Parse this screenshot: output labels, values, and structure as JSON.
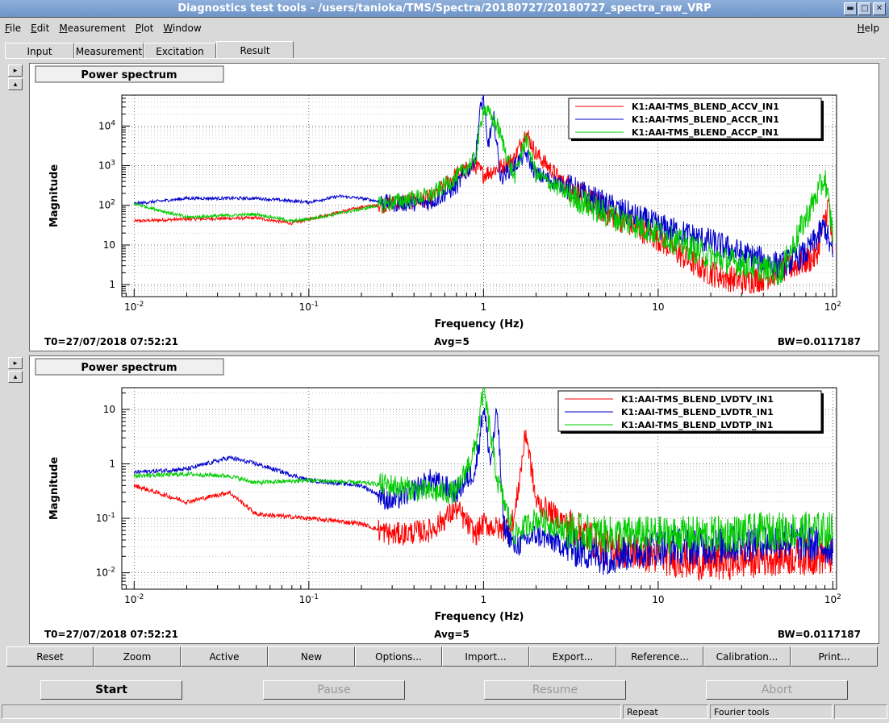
{
  "window": {
    "title": "Diagnostics test tools - /users/tanioka/TMS/Spectra/20180727/20180727_spectra_raw_VRP",
    "minimize": "▬",
    "maximize": "□",
    "close": "✕"
  },
  "menu": {
    "items": [
      {
        "hot": "F",
        "rest": "ile"
      },
      {
        "hot": "E",
        "rest": "dit"
      },
      {
        "hot": "M",
        "rest": "easurement"
      },
      {
        "hot": "P",
        "rest": "lot"
      },
      {
        "hot": "W",
        "rest": "indow"
      }
    ],
    "help": {
      "hot": "H",
      "rest": "elp"
    }
  },
  "tabs": [
    "Input",
    "Measurement",
    "Excitation",
    "Result"
  ],
  "active_tab": "Result",
  "side_buttons": {
    "up": "▸",
    "down": "▴"
  },
  "plots": [
    {
      "header": "Power spectrum",
      "ylabel": "Magnitude",
      "xlabel": "Frequency (Hz)",
      "t0": "T0=27/07/2018 07:52:21",
      "avg": "Avg=5",
      "bw": "BW=0.0117187",
      "xticks": [
        {
          "v": 0.01,
          "label": "10",
          "exp": "-2"
        },
        {
          "v": 0.1,
          "label": "10",
          "exp": "-1"
        },
        {
          "v": 1,
          "label": "1",
          "exp": ""
        },
        {
          "v": 10,
          "label": "10",
          "exp": ""
        },
        {
          "v": 100,
          "label": "10",
          "exp": "2"
        }
      ],
      "yticks": [
        {
          "v": 1,
          "label": "1",
          "exp": ""
        },
        {
          "v": 10,
          "label": "10",
          "exp": ""
        },
        {
          "v": 100,
          "label": "10",
          "exp": "2"
        },
        {
          "v": 1000,
          "label": "10",
          "exp": "3"
        },
        {
          "v": 10000,
          "label": "10",
          "exp": "4"
        }
      ]
    },
    {
      "header": "Power spectrum",
      "ylabel": "Magnitude",
      "xlabel": "Frequency (Hz)",
      "t0": "T0=27/07/2018 07:52:21",
      "avg": "Avg=5",
      "bw": "BW=0.0117187",
      "xticks": [
        {
          "v": 0.01,
          "label": "10",
          "exp": "-2"
        },
        {
          "v": 0.1,
          "label": "10",
          "exp": "-1"
        },
        {
          "v": 1,
          "label": "1",
          "exp": ""
        },
        {
          "v": 10,
          "label": "10",
          "exp": ""
        },
        {
          "v": 100,
          "label": "10",
          "exp": "2"
        }
      ],
      "yticks": [
        {
          "v": 0.01,
          "label": "10",
          "exp": "-2"
        },
        {
          "v": 0.1,
          "label": "10",
          "exp": "-1"
        },
        {
          "v": 1,
          "label": "1",
          "exp": ""
        },
        {
          "v": 10,
          "label": "10",
          "exp": ""
        }
      ]
    }
  ],
  "chart_data": [
    {
      "type": "line",
      "title": "Power spectrum",
      "xlabel": "Frequency (Hz)",
      "ylabel": "Magnitude",
      "xscale": "log",
      "yscale": "log",
      "xlim": [
        0.0085,
        105
      ],
      "ylim": [
        0.5,
        60000
      ],
      "grid": true,
      "legend_position": "top-right",
      "series": [
        {
          "name": "K1:AAI-TMS_BLEND_ACCV_IN1",
          "color": "#ff0000",
          "x": [
            0.01,
            0.02,
            0.05,
            0.08,
            0.1,
            0.2,
            0.3,
            0.5,
            0.7,
            0.9,
            1.0,
            1.3,
            1.5,
            1.75,
            2.0,
            3.0,
            5.0,
            8.0,
            10,
            15,
            20,
            30,
            40,
            60,
            80,
            95,
            100
          ],
          "y": [
            40,
            45,
            48,
            35,
            45,
            90,
            110,
            150,
            600,
            1000,
            600,
            1000,
            1500,
            7000,
            2000,
            300,
            70,
            25,
            15,
            4,
            2,
            1.2,
            1.5,
            3,
            5,
            120,
            4
          ]
        },
        {
          "name": "K1:AAI-TMS_BLEND_ACCR_IN1",
          "color": "#0000cc",
          "x": [
            0.01,
            0.02,
            0.05,
            0.1,
            0.15,
            0.2,
            0.3,
            0.5,
            0.7,
            0.9,
            0.95,
            1.0,
            1.05,
            1.15,
            1.25,
            1.5,
            1.75,
            2.0,
            3.0,
            5.0,
            10,
            20,
            30,
            50,
            70,
            90,
            100
          ],
          "y": [
            110,
            150,
            150,
            120,
            170,
            150,
            110,
            120,
            300,
            1500,
            20000,
            60000,
            3000,
            15000,
            500,
            1000,
            2000,
            600,
            300,
            100,
            30,
            12,
            6,
            3,
            6,
            30,
            5
          ]
        },
        {
          "name": "K1:AAI-TMS_BLEND_ACCP_IN1",
          "color": "#00cc00",
          "x": [
            0.01,
            0.02,
            0.05,
            0.08,
            0.1,
            0.2,
            0.3,
            0.5,
            0.7,
            0.9,
            1.0,
            1.2,
            1.5,
            1.75,
            2.0,
            3.0,
            5.0,
            10,
            20,
            50,
            90,
            100
          ],
          "y": [
            110,
            50,
            60,
            40,
            45,
            80,
            120,
            180,
            500,
            1500,
            30000,
            10000,
            500,
            5000,
            600,
            200,
            60,
            20,
            5,
            2,
            500,
            20
          ]
        }
      ]
    },
    {
      "type": "line",
      "title": "Power spectrum",
      "xlabel": "Frequency (Hz)",
      "ylabel": "Magnitude",
      "xscale": "log",
      "yscale": "log",
      "xlim": [
        0.0085,
        105
      ],
      "ylim": [
        0.005,
        25
      ],
      "grid": true,
      "legend_position": "top-right",
      "series": [
        {
          "name": "K1:AAI-TMS_BLEND_LVDTV_IN1",
          "color": "#ff0000",
          "x": [
            0.01,
            0.02,
            0.035,
            0.05,
            0.1,
            0.2,
            0.3,
            0.5,
            0.7,
            0.9,
            1.0,
            1.3,
            1.5,
            1.75,
            2.0,
            3.0,
            5.0,
            10,
            20,
            50,
            100
          ],
          "y": [
            0.4,
            0.2,
            0.3,
            0.12,
            0.1,
            0.08,
            0.05,
            0.06,
            0.15,
            0.05,
            0.08,
            0.06,
            0.1,
            4,
            0.2,
            0.08,
            0.03,
            0.02,
            0.015,
            0.02,
            0.02
          ]
        },
        {
          "name": "K1:AAI-TMS_BLEND_LVDTR_IN1",
          "color": "#0000cc",
          "x": [
            0.01,
            0.02,
            0.035,
            0.05,
            0.1,
            0.2,
            0.3,
            0.5,
            0.7,
            0.9,
            0.95,
            1.0,
            1.1,
            1.2,
            1.3,
            1.5,
            2.0,
            3.0,
            5.0,
            10,
            20,
            50,
            100
          ],
          "y": [
            0.7,
            0.8,
            1.3,
            1.0,
            0.5,
            0.4,
            0.2,
            0.5,
            0.3,
            0.8,
            3,
            12,
            1,
            10,
            0.08,
            0.03,
            0.05,
            0.03,
            0.02,
            0.03,
            0.03,
            0.04,
            0.03
          ]
        },
        {
          "name": "K1:AAI-TMS_BLEND_LVDTP_IN1",
          "color": "#00cc00",
          "x": [
            0.01,
            0.02,
            0.035,
            0.05,
            0.1,
            0.2,
            0.3,
            0.5,
            0.7,
            0.9,
            1.0,
            1.2,
            1.5,
            2.0,
            3.0,
            5.0,
            10,
            20,
            50,
            100
          ],
          "y": [
            0.6,
            0.65,
            0.6,
            0.45,
            0.5,
            0.45,
            0.4,
            0.3,
            0.3,
            2,
            25,
            0.5,
            0.05,
            0.1,
            0.06,
            0.05,
            0.05,
            0.05,
            0.06,
            0.06
          ]
        }
      ]
    }
  ],
  "bottom_buttons": [
    "Reset",
    "Zoom",
    "Active",
    "New",
    "Options...",
    "Import...",
    "Export...",
    "Reference...",
    "Calibration...",
    "Print..."
  ],
  "run_buttons": {
    "start": "Start",
    "pause": "Pause",
    "resume": "Resume",
    "abort": "Abort"
  },
  "status": {
    "repeat": "Repeat",
    "fourier": "Fourier tools"
  }
}
